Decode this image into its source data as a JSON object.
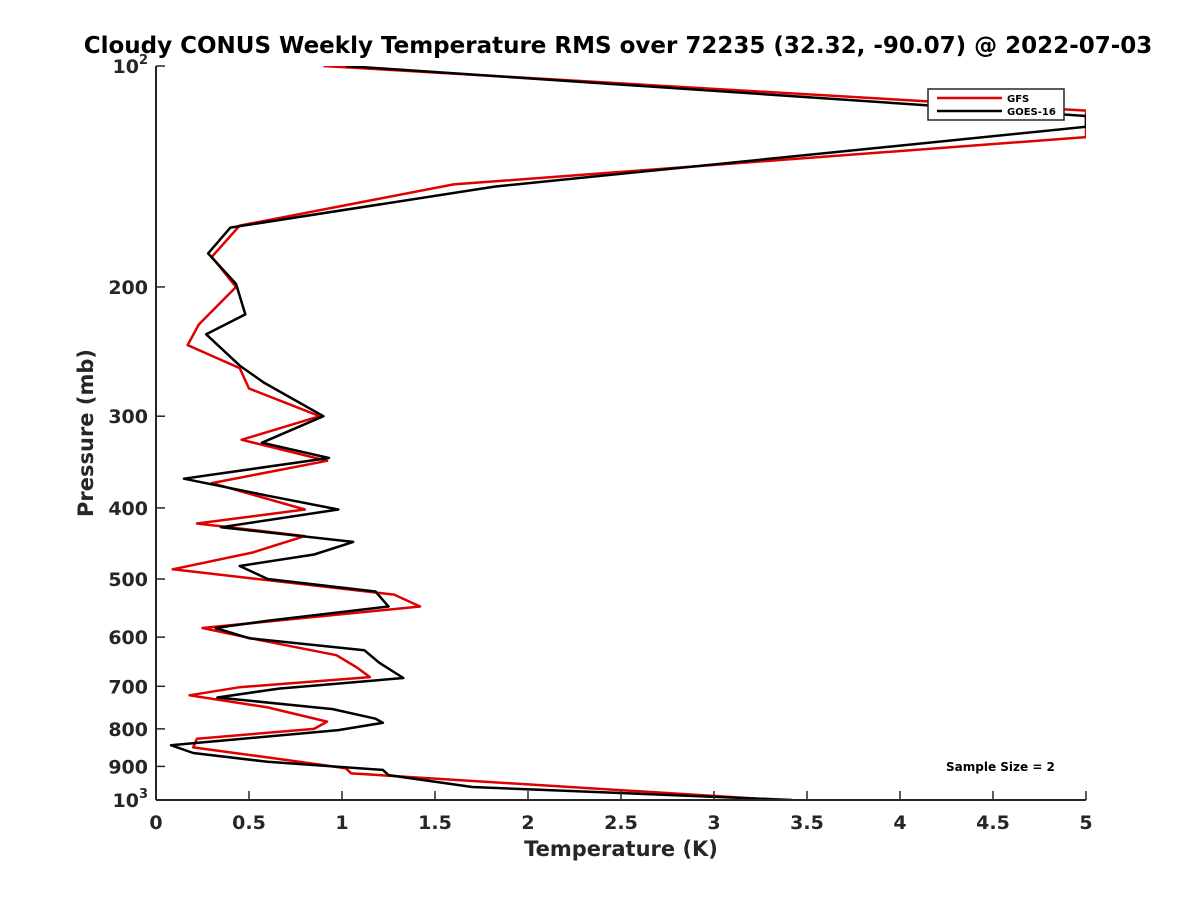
{
  "chart_data": {
    "type": "line",
    "title": "Cloudy CONUS Weekly Temperature RMS over 72235 (32.32, -90.07) @ 2022-07-03",
    "xlabel": "Temperature (K)",
    "ylabel": "Pressure (mb)",
    "xlim": [
      0,
      5
    ],
    "ylim": [
      100,
      1000
    ],
    "y_scale": "log",
    "y_reversed": true,
    "x_ticks": [
      "0",
      "0.5",
      "1",
      "1.5",
      "2",
      "2.5",
      "3",
      "3.5",
      "4",
      "4.5",
      "5"
    ],
    "y_ticks": [
      {
        "value": 100,
        "base": "10",
        "exp": "2"
      },
      {
        "value": 200,
        "label": "200"
      },
      {
        "value": 300,
        "label": "300"
      },
      {
        "value": 400,
        "label": "400"
      },
      {
        "value": 500,
        "label": "500"
      },
      {
        "value": 600,
        "label": "600"
      },
      {
        "value": 700,
        "label": "700"
      },
      {
        "value": 800,
        "label": "800"
      },
      {
        "value": 900,
        "label": "900"
      },
      {
        "value": 1000,
        "base": "10",
        "exp": "3"
      }
    ],
    "legend_location": "top-right",
    "grid": false,
    "annotation": "Sample Size = 2",
    "series": [
      {
        "name": "GFS",
        "color": "#e00000",
        "points": [
          [
            0.9,
            100
          ],
          [
            5.0,
            115
          ],
          [
            5.0,
            125
          ],
          [
            1.6,
            145
          ],
          [
            0.45,
            165
          ],
          [
            0.3,
            182
          ],
          [
            0.43,
            200
          ],
          [
            0.23,
            225
          ],
          [
            0.17,
            240
          ],
          [
            0.45,
            258
          ],
          [
            0.5,
            275
          ],
          [
            0.88,
            300
          ],
          [
            0.46,
            323
          ],
          [
            0.92,
            345
          ],
          [
            0.3,
            370
          ],
          [
            0.8,
            402
          ],
          [
            0.22,
            420
          ],
          [
            0.8,
            437
          ],
          [
            0.52,
            460
          ],
          [
            0.09,
            485
          ],
          [
            1.28,
            525
          ],
          [
            1.42,
            545
          ],
          [
            0.25,
            583
          ],
          [
            0.55,
            605
          ],
          [
            0.97,
            635
          ],
          [
            1.08,
            660
          ],
          [
            1.15,
            680
          ],
          [
            0.45,
            702
          ],
          [
            0.18,
            720
          ],
          [
            0.6,
            748
          ],
          [
            0.92,
            782
          ],
          [
            0.85,
            800
          ],
          [
            0.22,
            825
          ],
          [
            0.2,
            848
          ],
          [
            0.6,
            875
          ],
          [
            1.02,
            905
          ],
          [
            1.05,
            920
          ],
          [
            3.35,
            1000
          ]
        ]
      },
      {
        "name": "GOES-16",
        "color": "#000000",
        "points": [
          [
            1.02,
            100
          ],
          [
            5.0,
            117
          ],
          [
            5.0,
            121
          ],
          [
            1.82,
            146
          ],
          [
            0.4,
            166
          ],
          [
            0.28,
            180
          ],
          [
            0.43,
            198
          ],
          [
            0.48,
            218
          ],
          [
            0.27,
            232
          ],
          [
            0.45,
            256
          ],
          [
            0.58,
            270
          ],
          [
            0.9,
            300
          ],
          [
            0.57,
            326
          ],
          [
            0.93,
            342
          ],
          [
            0.15,
            365
          ],
          [
            0.6,
            385
          ],
          [
            0.98,
            402
          ],
          [
            0.35,
            425
          ],
          [
            1.06,
            445
          ],
          [
            0.85,
            463
          ],
          [
            0.45,
            480
          ],
          [
            0.6,
            500
          ],
          [
            1.18,
            520
          ],
          [
            1.25,
            545
          ],
          [
            0.6,
            570
          ],
          [
            0.32,
            583
          ],
          [
            0.5,
            602
          ],
          [
            1.12,
            625
          ],
          [
            1.2,
            650
          ],
          [
            1.33,
            682
          ],
          [
            0.66,
            705
          ],
          [
            0.33,
            725
          ],
          [
            0.95,
            752
          ],
          [
            1.18,
            775
          ],
          [
            1.22,
            785
          ],
          [
            0.98,
            803
          ],
          [
            0.08,
            842
          ],
          [
            0.2,
            863
          ],
          [
            0.6,
            887
          ],
          [
            1.22,
            910
          ],
          [
            1.25,
            925
          ],
          [
            1.7,
            960
          ],
          [
            3.42,
            1000
          ]
        ]
      }
    ]
  }
}
